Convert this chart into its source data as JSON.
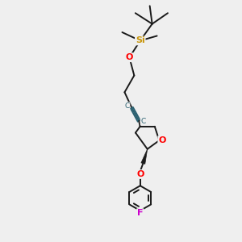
{
  "background_color": "#efefef",
  "bond_color": "#1a1a1a",
  "si_color": "#c8960c",
  "o_color": "#ff0000",
  "f_color": "#cc00cc",
  "c_color": "#2a6070",
  "line_width": 1.4,
  "figsize": [
    3.0,
    3.0
  ],
  "dpi": 100,
  "xlim": [
    0,
    10
  ],
  "ylim": [
    0,
    10
  ],
  "si_label": "Si",
  "o_label": "O",
  "f_label": "F",
  "c_label": "C"
}
